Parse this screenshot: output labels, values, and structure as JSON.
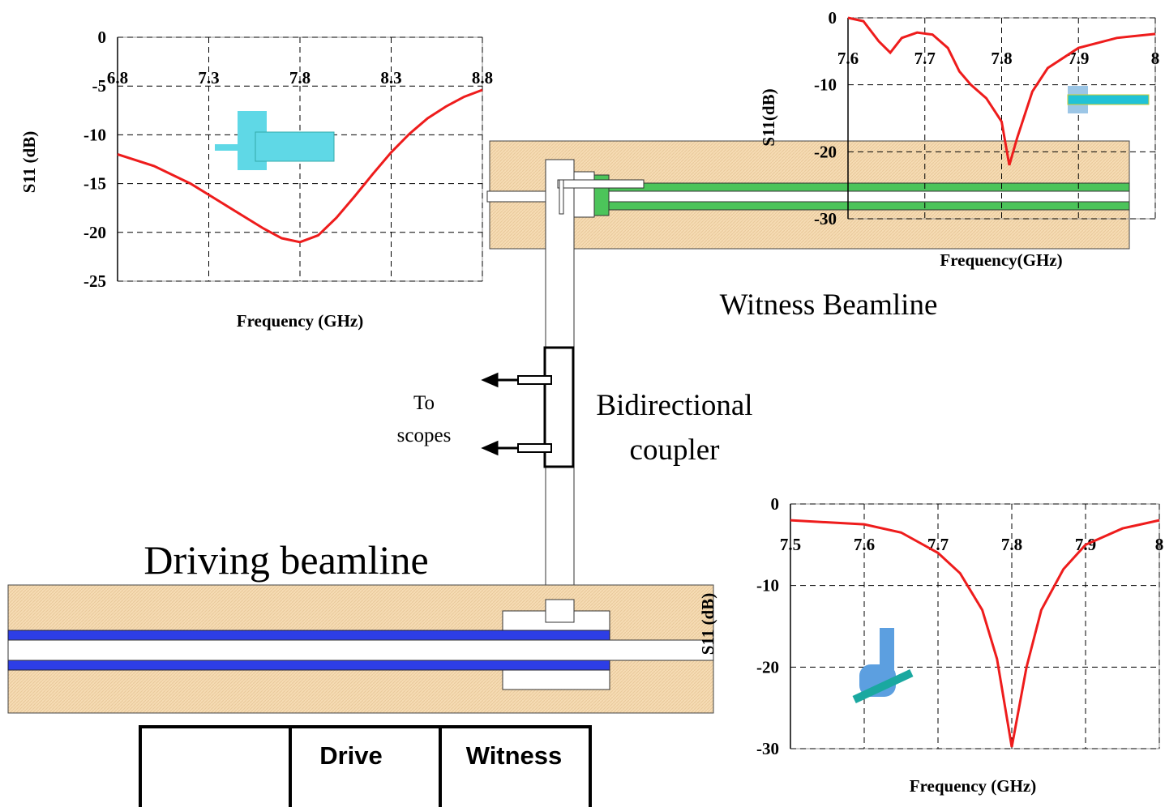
{
  "chart_data": [
    {
      "type": "line",
      "x_label": "Frequency (GHz)",
      "y_label": "S11 (dB)",
      "color": "#ee1c1c",
      "grid": true,
      "xlim": [
        6.8,
        8.8
      ],
      "xticks": [
        6.8,
        7.3,
        7.8,
        8.3,
        8.8
      ],
      "ylim": [
        -25,
        0
      ],
      "yticks": [
        0,
        -5,
        -10,
        -15,
        -20,
        -25
      ],
      "x": [
        6.8,
        7.0,
        7.2,
        7.4,
        7.6,
        7.7,
        7.8,
        7.9,
        8.0,
        8.1,
        8.2,
        8.3,
        8.4,
        8.5,
        8.6,
        8.7,
        8.8
      ],
      "values": [
        -12,
        -13.2,
        -15,
        -17.3,
        -19.6,
        -20.6,
        -21,
        -20.3,
        -18.5,
        -16.3,
        -14,
        -11.8,
        -9.9,
        -8.3,
        -7.1,
        -6.1,
        -5.4
      ]
    },
    {
      "type": "line",
      "x_label": "Frequency(GHz)",
      "y_label": "S11(dB)",
      "color": "#ee1c1c",
      "grid": true,
      "xlim": [
        7.6,
        8
      ],
      "xticks": [
        7.6,
        7.7,
        7.8,
        7.9,
        8
      ],
      "ylim": [
        -30,
        0
      ],
      "yticks": [
        0,
        -10,
        -20,
        -30
      ],
      "x": [
        7.6,
        7.62,
        7.64,
        7.655,
        7.67,
        7.69,
        7.71,
        7.73,
        7.745,
        7.76,
        7.78,
        7.8,
        7.81,
        7.82,
        7.84,
        7.86,
        7.9,
        7.95,
        8
      ],
      "values": [
        0,
        -0.5,
        -3.5,
        -5.2,
        -3,
        -2.2,
        -2.5,
        -4.5,
        -8,
        -10,
        -12,
        -15.5,
        -22,
        -18,
        -11,
        -7.5,
        -4.5,
        -3,
        -2.4
      ]
    },
    {
      "type": "line",
      "x_label": "Frequency (GHz)",
      "y_label": "S11 (dB)",
      "color": "#ee1c1c",
      "grid": true,
      "xlim": [
        7.5,
        8
      ],
      "xticks": [
        7.5,
        7.6,
        7.7,
        7.8,
        7.9,
        8
      ],
      "ylim": [
        -30,
        0
      ],
      "yticks": [
        0,
        -10,
        -20,
        -30
      ],
      "x": [
        7.5,
        7.6,
        7.65,
        7.7,
        7.73,
        7.76,
        7.78,
        7.8,
        7.82,
        7.84,
        7.87,
        7.9,
        7.95,
        8
      ],
      "values": [
        -2,
        -2.5,
        -3.5,
        -6,
        -8.5,
        -13,
        -19,
        -29.8,
        -20,
        -13,
        -8,
        -5,
        -3,
        -2
      ]
    }
  ],
  "labels": {
    "witness": "Witness Beamline",
    "scopes": [
      "To",
      "scopes"
    ],
    "coupler": [
      "Bidirectional",
      "coupler"
    ],
    "driving": "Driving beamline"
  },
  "table": {
    "header": [
      "Drive",
      "Witness"
    ]
  }
}
